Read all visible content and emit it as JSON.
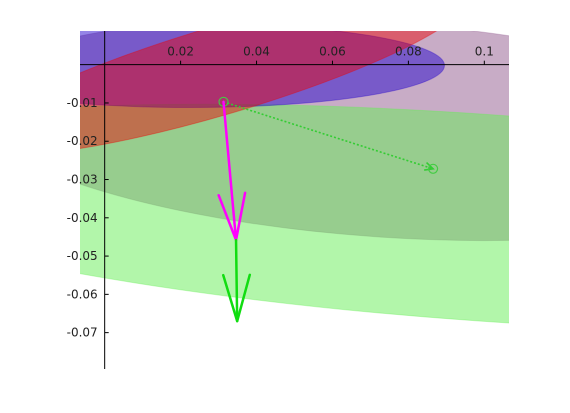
{
  "chart_data": {
    "type": "scatter",
    "title": "",
    "xlabel": "",
    "ylabel": "",
    "xlim": [
      -0.0065,
      0.1065
    ],
    "ylim": [
      -0.0795,
      0.0088
    ],
    "grid": false,
    "x_ticks": [
      {
        "value": 0.02,
        "label": "0.02"
      },
      {
        "value": 0.04,
        "label": "0.04"
      },
      {
        "value": 0.06,
        "label": "0.06"
      },
      {
        "value": 0.08,
        "label": "0.08"
      },
      {
        "value": 0.1,
        "label": "0.1"
      }
    ],
    "y_ticks": [
      {
        "value": -0.01,
        "label": "-0.01"
      },
      {
        "value": -0.02,
        "label": "-0.02"
      },
      {
        "value": -0.03,
        "label": "-0.03"
      },
      {
        "value": -0.04,
        "label": "-0.04"
      },
      {
        "value": -0.05,
        "label": "-0.05"
      },
      {
        "value": -0.06,
        "label": "-0.06"
      },
      {
        "value": -0.07,
        "label": "-0.07"
      }
    ],
    "ellipses": [
      {
        "name_hint": "large",
        "cx": 0.073,
        "cy": -0.017,
        "rx": 0.11,
        "ry": 0.028,
        "angle_deg": 4,
        "fill": "#9a6898",
        "opacity": 0.55
      },
      {
        "name_hint": "green",
        "cx": 0.1,
        "cy": -0.04,
        "rx": 0.18,
        "ry": 0.027,
        "angle_deg": 4,
        "fill": "#66ee55",
        "opacity": 0.5
      },
      {
        "name_hint": "blue",
        "cx": 0.0225,
        "cy": -0.0002,
        "rx": 0.067,
        "ry": 0.011,
        "angle_deg": 0,
        "fill": "#2200cc",
        "opacity": 0.48
      },
      {
        "name_hint": "red",
        "cx": 0.0305,
        "cy": -0.0015,
        "rx": 0.068,
        "ry": 0.0115,
        "angle_deg": -16.5,
        "fill": "#ee0000",
        "opacity": 0.45
      }
    ],
    "points": [
      {
        "x": 0.0313,
        "y": -0.0097,
        "stroke": "#44cc44"
      },
      {
        "x": 0.0865,
        "y": -0.0272,
        "stroke": "#44cc44"
      }
    ],
    "segments": [
      {
        "x1": 0.0313,
        "y1": -0.0097,
        "x2": 0.0865,
        "y2": -0.0272,
        "color": "#33cc33",
        "dashed": true
      }
    ],
    "arrows": [
      {
        "x1": 0.0313,
        "y1": -0.0097,
        "x2": 0.0346,
        "y2": -0.0458,
        "color": "#ff00ff"
      },
      {
        "x1": 0.0346,
        "y1": -0.0458,
        "x2": 0.0349,
        "y2": -0.067,
        "color": "#11dd11"
      }
    ],
    "colors": {
      "axis": "#000000",
      "magenta_arrow": "#ff00ff",
      "green_arrow": "#11dd11"
    }
  }
}
